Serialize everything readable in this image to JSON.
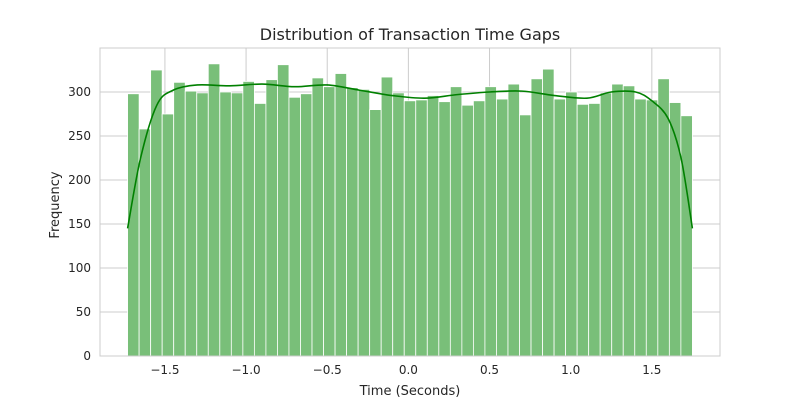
{
  "chart_data": {
    "type": "bar",
    "title": "Distribution of Transaction Time Gaps",
    "xlabel": "Time (Seconds)",
    "ylabel": "Frequency",
    "xlim": [
      -1.9,
      1.92
    ],
    "ylim": [
      0,
      350
    ],
    "x_ticks": [
      {
        "value": -1.5,
        "label": "−1.5"
      },
      {
        "value": -1.0,
        "label": "−1.0"
      },
      {
        "value": -0.5,
        "label": "−0.5"
      },
      {
        "value": 0.0,
        "label": "0.0"
      },
      {
        "value": 0.5,
        "label": "0.5"
      },
      {
        "value": 1.0,
        "label": "1.0"
      },
      {
        "value": 1.5,
        "label": "1.5"
      }
    ],
    "y_ticks": [
      {
        "value": 0,
        "label": "0"
      },
      {
        "value": 50,
        "label": "50"
      },
      {
        "value": 100,
        "label": "100"
      },
      {
        "value": 150,
        "label": "150"
      },
      {
        "value": 200,
        "label": "200"
      },
      {
        "value": 250,
        "label": "250"
      },
      {
        "value": 300,
        "label": "300"
      }
    ],
    "grid": true,
    "bins": {
      "start": -1.73,
      "end": 1.75,
      "counts": [
        298,
        258,
        325,
        275,
        311,
        301,
        299,
        332,
        300,
        299,
        312,
        287,
        314,
        331,
        294,
        298,
        316,
        306,
        321,
        305,
        303,
        280,
        317,
        299,
        290,
        291,
        296,
        289,
        306,
        285,
        290,
        306,
        292,
        309,
        274,
        315,
        326,
        292,
        300,
        286,
        287,
        299,
        309,
        307,
        292,
        291,
        315,
        288,
        273
      ]
    },
    "kde": {
      "x": [
        -1.73,
        -1.65,
        -1.55,
        -1.45,
        -1.3,
        -1.1,
        -0.9,
        -0.7,
        -0.5,
        -0.3,
        -0.1,
        0.1,
        0.3,
        0.5,
        0.7,
        0.9,
        1.1,
        1.25,
        1.4,
        1.5,
        1.6,
        1.68,
        1.75
      ],
      "y": [
        145,
        225,
        285,
        302,
        308,
        307,
        309,
        306,
        308,
        302,
        296,
        293,
        297,
        300,
        301,
        296,
        293,
        300,
        300,
        290,
        270,
        225,
        145
      ]
    },
    "colors": {
      "bar_fill": "#79bf79",
      "bar_edge": "#ffffff",
      "kde_line": "#008000",
      "grid": "#cccccc",
      "spine": "#cccccc",
      "text": "#262626"
    }
  }
}
